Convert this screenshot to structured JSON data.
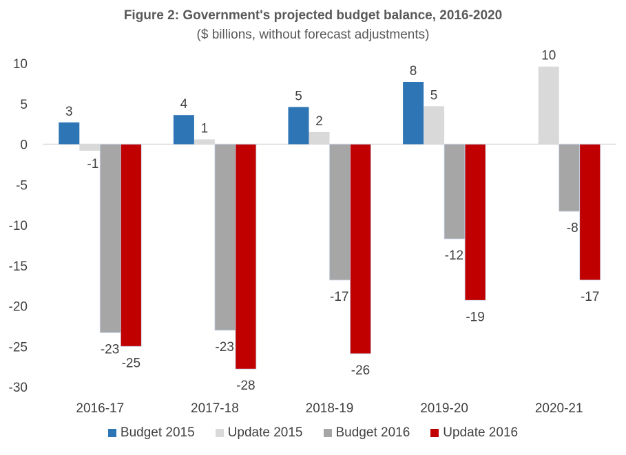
{
  "chart_data": {
    "type": "bar",
    "title": "Figure 2: Government's projected budget balance, 2016-2020",
    "subtitle": "($ billions, without forecast adjustments)",
    "xlabel": "",
    "ylabel": "",
    "categories": [
      "2016-17",
      "2017-18",
      "2018-19",
      "2019-20",
      "2020-21"
    ],
    "ylim": [
      -30,
      10
    ],
    "yticks": [
      10,
      5,
      0,
      -5,
      -10,
      -15,
      -20,
      -25,
      -30
    ],
    "grid": false,
    "legend_position": "bottom",
    "series": [
      {
        "name": "Budget 2015",
        "color": "#2e75b6",
        "values": [
          2.7,
          3.6,
          4.6,
          7.7,
          null
        ],
        "labels": [
          "3",
          "4",
          "5",
          "8",
          null
        ]
      },
      {
        "name": "Update 2015",
        "color": "#d9d9d9",
        "values": [
          -0.8,
          0.6,
          1.5,
          4.7,
          9.6
        ],
        "labels": [
          "-1",
          "1",
          "2",
          "5",
          "10"
        ]
      },
      {
        "name": "Budget 2016",
        "color": "#a6a6a6",
        "values": [
          -23.3,
          -23.0,
          -16.8,
          -11.7,
          -8.3
        ],
        "labels": [
          "-23",
          "-23",
          "-17",
          "-12",
          "-8"
        ]
      },
      {
        "name": "Update 2016",
        "color": "#c00000",
        "values": [
          -25.0,
          -27.8,
          -25.9,
          -19.3,
          -16.8
        ],
        "labels": [
          "-25",
          "-28",
          "-26",
          "-19",
          "-17"
        ]
      }
    ]
  }
}
